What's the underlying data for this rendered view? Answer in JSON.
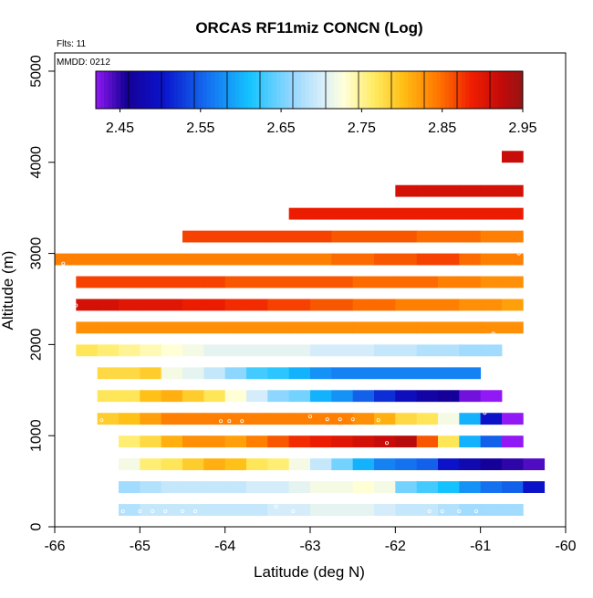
{
  "chart_data": {
    "type": "heatmap",
    "title": "ORCAS RF11miz CONCN (Log)",
    "xlabel": "Latitude (deg N)",
    "ylabel": "Altitude (m)",
    "annotations": [
      "Flts: 11",
      "MMDD: 0212"
    ],
    "xlim": [
      -66,
      -60
    ],
    "ylim": [
      0,
      5200
    ],
    "x_ticks": [
      -66,
      -65,
      -64,
      -63,
      -62,
      -61,
      -60
    ],
    "y_ticks": [
      0,
      1000,
      2000,
      3000,
      4000,
      5000
    ],
    "colorbar": {
      "range": [
        2.42,
        2.95
      ],
      "ticks": [
        2.45,
        2.55,
        2.65,
        2.75,
        2.85,
        2.95
      ],
      "tick_labels": [
        "2.45",
        "2.55",
        "2.65",
        "2.75",
        "2.85",
        "2.95"
      ]
    },
    "cell_width_deg": 0.25,
    "cell_height_m": 125,
    "rows": [
      {
        "y": 4000,
        "x0": -60.75,
        "values": [
          2.92
        ]
      },
      {
        "y": 3625,
        "x0": -62,
        "values": [
          2.91,
          2.91,
          2.91,
          2.91,
          2.91,
          2.91
        ]
      },
      {
        "y": 3375,
        "x0": -63.25,
        "values": [
          2.89,
          2.89,
          2.89,
          2.89,
          2.89,
          2.89,
          2.89,
          2.89,
          2.89,
          2.89,
          2.89
        ]
      },
      {
        "y": 3125,
        "x0": -64.5,
        "values": [
          2.87,
          2.87,
          2.87,
          2.87,
          2.87,
          2.87,
          2.87,
          2.86,
          2.86,
          2.86,
          2.86,
          2.85,
          2.85,
          2.85,
          2.84,
          2.84
        ]
      },
      {
        "y": 2875,
        "x0": -66,
        "values": [
          2.84,
          2.84,
          2.84,
          2.84,
          2.84,
          2.84,
          2.84,
          2.84,
          2.84,
          2.84,
          2.84,
          2.84,
          2.84,
          2.85,
          2.85,
          2.86,
          2.86,
          2.87,
          2.87,
          2.85,
          2.84,
          2.84
        ]
      },
      {
        "y": 2625,
        "x0": -65.75,
        "values": [
          2.87,
          2.87,
          2.87,
          2.87,
          2.87,
          2.87,
          2.87,
          2.86,
          2.86,
          2.86,
          2.86,
          2.86,
          2.86,
          2.85,
          2.85,
          2.85,
          2.85,
          2.84,
          2.84,
          2.83,
          2.83
        ]
      },
      {
        "y": 2375,
        "x0": -65.75,
        "values": [
          2.91,
          2.91,
          2.9,
          2.9,
          2.9,
          2.89,
          2.89,
          2.88,
          2.88,
          2.87,
          2.87,
          2.86,
          2.86,
          2.85,
          2.85,
          2.84,
          2.84,
          2.84,
          2.83,
          2.83,
          2.82
        ]
      },
      {
        "y": 2125,
        "x0": -65.75,
        "values": [
          2.83,
          2.83,
          2.83,
          2.83,
          2.83,
          2.83,
          2.83,
          2.83,
          2.83,
          2.83,
          2.83,
          2.83,
          2.83,
          2.83,
          2.83,
          2.83,
          2.83,
          2.83,
          2.83,
          2.83,
          2.83
        ]
      },
      {
        "y": 1875,
        "x0": -65.75,
        "values": [
          2.77,
          2.76,
          2.75,
          2.74,
          2.73,
          2.72,
          2.71,
          2.71,
          2.71,
          2.71,
          2.71,
          2.7,
          2.7,
          2.7,
          2.69,
          2.69,
          2.68,
          2.68,
          2.67,
          2.67
        ]
      },
      {
        "y": 1625,
        "x0": -65.5,
        "values": [
          2.78,
          2.78,
          2.79,
          2.72,
          2.71,
          2.69,
          2.66,
          2.63,
          2.62,
          2.6,
          2.58,
          2.57,
          2.57,
          2.57,
          2.57,
          2.57,
          2.57,
          2.57
        ]
      },
      {
        "y": 1375,
        "x0": -65.5,
        "values": [
          2.77,
          2.77,
          2.8,
          2.81,
          2.79,
          2.77,
          2.73,
          2.7,
          2.66,
          2.65,
          2.6,
          2.58,
          2.55,
          2.52,
          2.49,
          2.47,
          2.46,
          2.43,
          2.42
        ]
      },
      {
        "y": 1125,
        "x0": -65.5,
        "values": [
          2.79,
          2.8,
          2.82,
          2.84,
          2.84,
          2.84,
          2.84,
          2.84,
          2.84,
          2.84,
          2.84,
          2.84,
          2.83,
          2.81,
          2.78,
          2.77,
          2.72,
          2.6,
          2.5,
          2.42
        ]
      },
      {
        "y": 875,
        "x0": -65.25,
        "values": [
          2.76,
          2.78,
          2.81,
          2.83,
          2.83,
          2.82,
          2.84,
          2.86,
          2.88,
          2.89,
          2.9,
          2.91,
          2.92,
          2.93,
          2.86,
          2.77,
          2.6,
          2.55,
          2.42
        ]
      },
      {
        "y": 625,
        "x0": -65.25,
        "values": [
          2.72,
          2.76,
          2.77,
          2.79,
          2.81,
          2.8,
          2.77,
          2.76,
          2.72,
          2.69,
          2.65,
          2.6,
          2.57,
          2.56,
          2.55,
          2.5,
          2.48,
          2.46,
          2.45,
          2.44
        ]
      },
      {
        "y": 375,
        "x0": -65.25,
        "values": [
          2.67,
          2.68,
          2.69,
          2.69,
          2.69,
          2.69,
          2.7,
          2.7,
          2.71,
          2.72,
          2.72,
          2.73,
          2.72,
          2.65,
          2.63,
          2.61,
          2.58,
          2.56,
          2.55,
          2.5
        ]
      },
      {
        "y": 125,
        "x0": -65.25,
        "values": [
          2.68,
          2.69,
          2.69,
          2.69,
          2.69,
          2.69,
          2.69,
          2.7,
          2.7,
          2.71,
          2.71,
          2.71,
          2.7,
          2.69,
          2.69,
          2.68,
          2.67,
          2.67,
          2.67
        ]
      }
    ],
    "flight_points": [
      [
        -60.6,
        3900
      ],
      [
        -60.55,
        3000
      ],
      [
        -65.9,
        2890
      ],
      [
        -65.75,
        2430
      ],
      [
        -60.85,
        2120
      ],
      [
        -65.45,
        1170
      ],
      [
        -64.05,
        1160
      ],
      [
        -63.95,
        1160
      ],
      [
        -63.8,
        1160
      ],
      [
        -63.0,
        1210
      ],
      [
        -62.8,
        1180
      ],
      [
        -62.65,
        1180
      ],
      [
        -62.5,
        1180
      ],
      [
        -62.2,
        1170
      ],
      [
        -60.95,
        1250
      ],
      [
        -63.55,
        790
      ],
      [
        -62.1,
        920
      ],
      [
        -65.3,
        540
      ],
      [
        -64.2,
        550
      ],
      [
        -61.0,
        600
      ],
      [
        -65.2,
        170
      ],
      [
        -65.0,
        170
      ],
      [
        -64.85,
        170
      ],
      [
        -64.7,
        170
      ],
      [
        -64.5,
        170
      ],
      [
        -64.35,
        170
      ],
      [
        -63.4,
        220
      ],
      [
        -63.2,
        170
      ],
      [
        -61.6,
        170
      ],
      [
        -61.45,
        170
      ],
      [
        -61.25,
        170
      ],
      [
        -61.05,
        170
      ],
      [
        -60.95,
        300
      ]
    ]
  }
}
